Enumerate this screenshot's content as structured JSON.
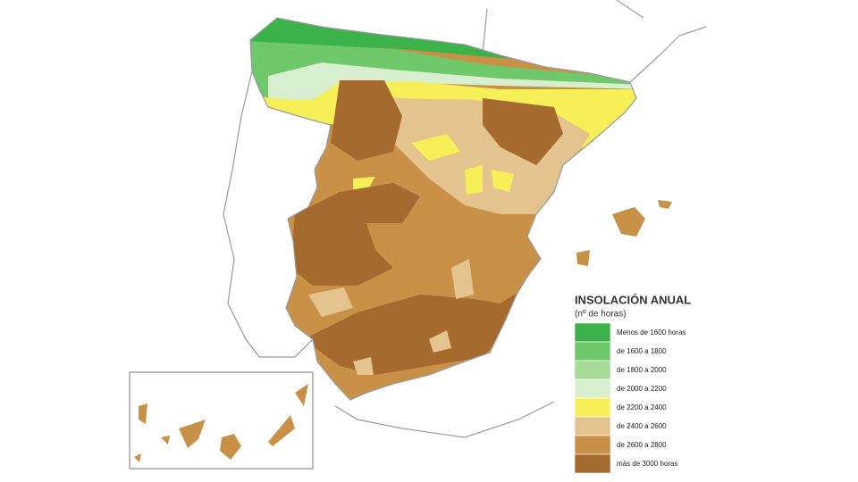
{
  "legend": {
    "title": "INSOLACIÓN ANUAL",
    "subtitle": "(nº de horas)",
    "items": [
      {
        "label": "Menos de 1600 horas",
        "color": "#3cb34a"
      },
      {
        "label": "de 1600 a 1800",
        "color": "#6fc96a"
      },
      {
        "label": "de 1800 a 2000",
        "color": "#a6dc98"
      },
      {
        "label": "de 2000 a 2200",
        "color": "#d8efcf"
      },
      {
        "label": "de 2200 a 2400",
        "color": "#f6ef58"
      },
      {
        "label": "de 2400 a 2600",
        "color": "#e3c48e"
      },
      {
        "label": "de 2600 a 2800",
        "color": "#c99048"
      },
      {
        "label": "más de 3000 horas",
        "color": "#a66a2e"
      }
    ]
  }
}
